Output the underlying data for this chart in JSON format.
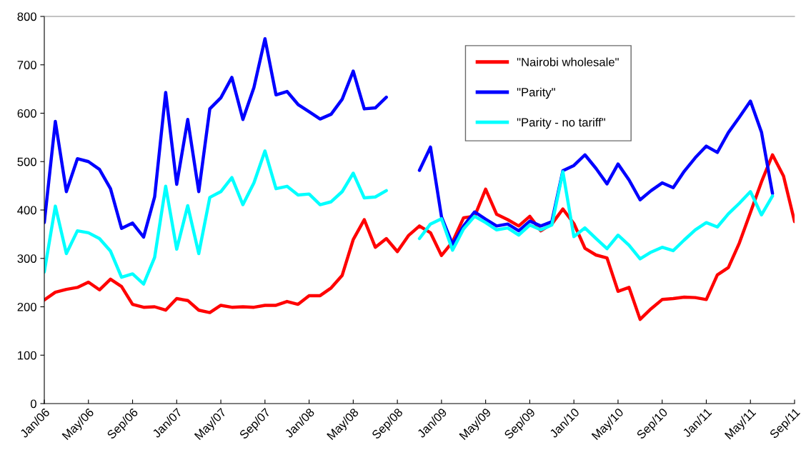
{
  "chart_data": {
    "type": "line",
    "categories": [
      "Jan/06",
      null,
      null,
      null,
      "May/06",
      null,
      null,
      null,
      "Sep/06",
      null,
      null,
      null,
      "Jan/07",
      null,
      null,
      null,
      "May/07",
      null,
      null,
      null,
      "Sep/07",
      null,
      null,
      null,
      "Jan/08",
      null,
      null,
      null,
      "May/08",
      null,
      null,
      null,
      "Sep/08",
      null,
      null,
      null,
      "Jan/09",
      null,
      null,
      null,
      "May/09",
      null,
      null,
      null,
      "Sep/09",
      null,
      null,
      null,
      "Jan/10",
      null,
      null,
      null,
      "May/10",
      null,
      null,
      null,
      "Sep/10",
      null,
      null,
      null,
      "Jan/11",
      null,
      null,
      null,
      "May/11",
      null,
      null,
      null,
      "Sep/11"
    ],
    "series": [
      {
        "name": "\"Nairobi wholesale\"",
        "color": "#ff0000",
        "values": [
          214,
          230,
          236,
          240,
          251,
          235,
          257,
          242,
          205,
          199,
          200,
          193,
          217,
          213,
          193,
          188,
          203,
          199,
          200,
          199,
          203,
          203,
          211,
          205,
          223,
          223,
          239,
          265,
          339,
          380,
          323,
          341,
          314,
          347,
          367,
          353,
          306,
          334,
          384,
          387,
          443,
          391,
          380,
          367,
          387,
          357,
          371,
          402,
          372,
          321,
          307,
          301,
          232,
          240,
          174,
          196,
          215,
          217,
          220,
          219,
          215,
          266,
          281,
          332,
          395,
          458,
          514,
          470,
          376
        ]
      },
      {
        "name": "\"Parity\"",
        "color": "#0000ff",
        "values": [
          374,
          583,
          438,
          506,
          500,
          484,
          444,
          362,
          373,
          344,
          427,
          643,
          453,
          587,
          438,
          609,
          632,
          674,
          587,
          653,
          754,
          638,
          645,
          618,
          603,
          588,
          598,
          629,
          687,
          609,
          611,
          633,
          null,
          null,
          482,
          530,
          386,
          329,
          367,
          396,
          381,
          367,
          371,
          357,
          377,
          367,
          376,
          481,
          492,
          514,
          486,
          454,
          495,
          462,
          421,
          440,
          456,
          446,
          480,
          508,
          532,
          519,
          560,
          592,
          625,
          561,
          434,
          null,
          null
        ]
      },
      {
        "name": "\"Parity - no tariff\"",
        "color": "#00ffff",
        "values": [
          272,
          408,
          310,
          357,
          353,
          341,
          315,
          261,
          268,
          247,
          302,
          449,
          319,
          409,
          310,
          426,
          438,
          467,
          411,
          456,
          522,
          444,
          449,
          431,
          433,
          411,
          417,
          438,
          476,
          425,
          427,
          440,
          null,
          null,
          341,
          371,
          382,
          317,
          361,
          387,
          374,
          359,
          363,
          348,
          369,
          359,
          369,
          479,
          345,
          363,
          341,
          320,
          348,
          327,
          299,
          313,
          323,
          316,
          338,
          359,
          374,
          365,
          392,
          414,
          438,
          390,
          429,
          null,
          null
        ]
      }
    ],
    "ylim": [
      0,
      800
    ],
    "yticks": [
      0,
      100,
      200,
      300,
      400,
      500,
      600,
      700,
      800
    ],
    "legend": "top right",
    "marker": "none",
    "line_style": "solid"
  }
}
